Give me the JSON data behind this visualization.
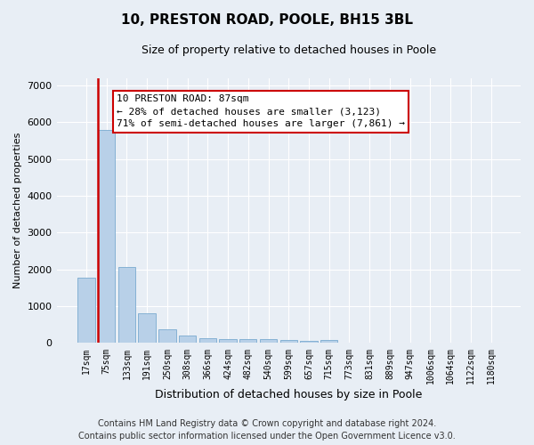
{
  "title": "10, PRESTON ROAD, POOLE, BH15 3BL",
  "subtitle": "Size of property relative to detached houses in Poole",
  "xlabel": "Distribution of detached houses by size in Poole",
  "ylabel": "Number of detached properties",
  "categories": [
    "17sqm",
    "75sqm",
    "133sqm",
    "191sqm",
    "250sqm",
    "308sqm",
    "366sqm",
    "424sqm",
    "482sqm",
    "540sqm",
    "599sqm",
    "657sqm",
    "715sqm",
    "773sqm",
    "831sqm",
    "889sqm",
    "947sqm",
    "1006sqm",
    "1064sqm",
    "1122sqm",
    "1180sqm"
  ],
  "values": [
    1780,
    5780,
    2060,
    800,
    370,
    210,
    120,
    100,
    100,
    100,
    80,
    60,
    80,
    0,
    0,
    0,
    0,
    0,
    0,
    0,
    0
  ],
  "bar_color": "#b8d0e8",
  "bar_edge_color": "#7aaad0",
  "highlight_bar_index": 1,
  "highlight_line_color": "#cc0000",
  "annotation_text": "10 PRESTON ROAD: 87sqm\n← 28% of detached houses are smaller (3,123)\n71% of semi-detached houses are larger (7,861) →",
  "annotation_box_color": "white",
  "annotation_box_edge_color": "#cc0000",
  "ylim": [
    0,
    7200
  ],
  "yticks": [
    0,
    1000,
    2000,
    3000,
    4000,
    5000,
    6000,
    7000
  ],
  "background_color": "#e8eef5",
  "grid_color": "white",
  "footer_line1": "Contains HM Land Registry data © Crown copyright and database right 2024.",
  "footer_line2": "Contains public sector information licensed under the Open Government Licence v3.0.",
  "title_fontsize": 11,
  "subtitle_fontsize": 9,
  "annotation_fontsize": 8,
  "footer_fontsize": 7,
  "ylabel_fontsize": 8,
  "xlabel_fontsize": 9
}
